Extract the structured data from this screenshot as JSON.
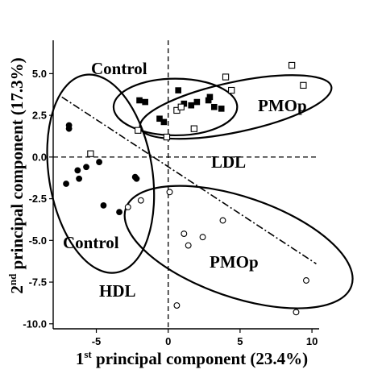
{
  "chart_data": {
    "type": "scatter",
    "xlabel": {
      "prefix": "1",
      "sup": "st",
      "rest": " principal component (23.4%)"
    },
    "ylabel": {
      "prefix": "2",
      "sup": "nd",
      "rest": " principal component (17.3%)"
    },
    "xlim": [
      -8,
      10.5
    ],
    "ylim": [
      -10.3,
      7.0
    ],
    "xticks": [
      -5,
      0,
      5,
      10
    ],
    "yticks": [
      5.0,
      2.5,
      0.0,
      -2.5,
      -5.0,
      -7.5,
      -10.0
    ],
    "ytick_labels": [
      "5.0",
      "2.5",
      "0.0",
      "-2.5",
      "-5.0",
      "-7.5",
      "-10.0"
    ],
    "xtick_labels": [
      "-5",
      "0",
      "5",
      "10"
    ],
    "grid": false,
    "annotations": [
      "Control",
      "PMOp",
      "LDL",
      "Control",
      "PMOp",
      "HDL"
    ],
    "series": [
      {
        "marker": "filled-square",
        "points": [
          [
            -2.0,
            3.4
          ],
          [
            -1.6,
            3.3
          ],
          [
            -0.6,
            2.3
          ],
          [
            -0.3,
            2.1
          ],
          [
            0.7,
            4.0
          ],
          [
            1.1,
            3.2
          ],
          [
            1.6,
            3.1
          ],
          [
            2.0,
            3.3
          ],
          [
            2.8,
            3.4
          ],
          [
            2.9,
            3.6
          ],
          [
            3.2,
            3.0
          ],
          [
            3.7,
            2.9
          ]
        ]
      },
      {
        "marker": "open-square",
        "points": [
          [
            -5.4,
            0.2
          ],
          [
            -2.1,
            1.6
          ],
          [
            -0.1,
            1.2
          ],
          [
            0.6,
            2.8
          ],
          [
            0.9,
            3.0
          ],
          [
            1.8,
            1.7
          ],
          [
            4.0,
            4.8
          ],
          [
            4.4,
            4.0
          ],
          [
            8.6,
            5.5
          ],
          [
            9.4,
            4.3
          ]
        ]
      },
      {
        "marker": "filled-circle",
        "points": [
          [
            -6.9,
            1.9
          ],
          [
            -6.9,
            1.7
          ],
          [
            -7.1,
            -1.6
          ],
          [
            -6.3,
            -0.8
          ],
          [
            -6.2,
            -1.3
          ],
          [
            -5.7,
            -0.6
          ],
          [
            -4.8,
            -0.3
          ],
          [
            -4.5,
            -2.9
          ],
          [
            -3.4,
            -3.3
          ],
          [
            -2.3,
            -1.2
          ],
          [
            -2.2,
            -1.3
          ]
        ]
      },
      {
        "marker": "open-circle",
        "points": [
          [
            -2.8,
            -3.0
          ],
          [
            -1.9,
            -2.6
          ],
          [
            0.1,
            -2.1
          ],
          [
            1.1,
            -4.6
          ],
          [
            1.4,
            -5.3
          ],
          [
            2.4,
            -4.8
          ],
          [
            3.8,
            -3.8
          ],
          [
            0.6,
            -8.9
          ],
          [
            9.6,
            -7.4
          ],
          [
            8.9,
            -9.3
          ]
        ]
      }
    ]
  }
}
